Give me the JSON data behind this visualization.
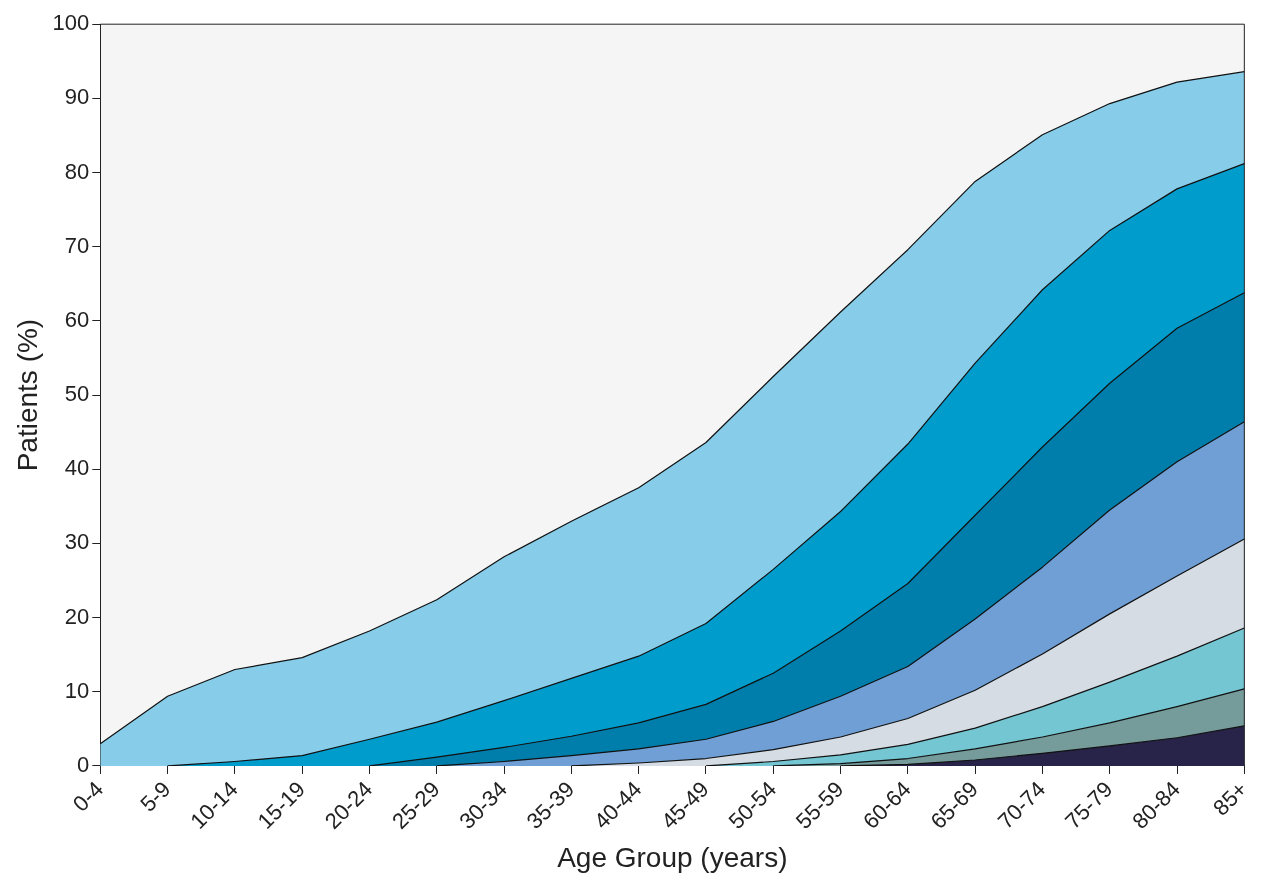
{
  "chart_data": {
    "type": "area",
    "xlabel": "Age Group (years)",
    "ylabel": "Patients (%)",
    "categories": [
      "0-4",
      "5-9",
      "10-14",
      "15-19",
      "20-24",
      "25-29",
      "30-34",
      "35-39",
      "40-44",
      "45-49",
      "50-54",
      "55-59",
      "60-64",
      "65-69",
      "70-74",
      "75-79",
      "80-84",
      "85+"
    ],
    "series": [
      {
        "color": "#87cde9",
        "values": [
          3.0,
          9.4,
          13.0,
          14.6,
          18.2,
          22.4,
          28.2,
          33.0,
          37.5,
          43.6,
          52.5,
          61.2,
          69.6,
          78.8,
          85.1,
          89.3,
          92.2,
          93.6
        ]
      },
      {
        "color": "#009dcc",
        "values": [
          null,
          0,
          0.6,
          1.4,
          3.6,
          5.9,
          8.8,
          11.8,
          14.8,
          19.2,
          26.5,
          34.3,
          43.4,
          54.3,
          64.2,
          72.2,
          77.8,
          81.2
        ]
      },
      {
        "color": "#007eab",
        "values": [
          null,
          null,
          null,
          null,
          0,
          1.2,
          2.5,
          4.0,
          5.8,
          8.3,
          12.5,
          18.2,
          24.6,
          33.8,
          43.0,
          51.6,
          59.0,
          63.8
        ]
      },
      {
        "color": "#6f9fd4",
        "values": [
          null,
          null,
          null,
          null,
          null,
          0,
          0.6,
          1.4,
          2.3,
          3.6,
          6.0,
          9.4,
          13.4,
          19.8,
          26.8,
          34.5,
          41.0,
          46.4
        ]
      },
      {
        "color": "#d5dce3",
        "values": [
          null,
          null,
          null,
          null,
          null,
          null,
          null,
          0,
          0.4,
          1.0,
          2.2,
          3.9,
          6.4,
          10.2,
          15.1,
          20.5,
          25.6,
          30.6
        ]
      },
      {
        "color": "#74c6d2",
        "values": [
          null,
          null,
          null,
          null,
          null,
          null,
          null,
          null,
          null,
          0,
          0.6,
          1.5,
          2.9,
          5.1,
          8.0,
          11.3,
          14.8,
          18.6
        ]
      },
      {
        "color": "#769b9b",
        "values": [
          null,
          null,
          null,
          null,
          null,
          null,
          null,
          null,
          null,
          null,
          0,
          0.3,
          1.0,
          2.3,
          3.9,
          5.8,
          8.0,
          10.4
        ]
      },
      {
        "color": "#282348",
        "values": [
          null,
          null,
          null,
          null,
          null,
          null,
          null,
          null,
          null,
          null,
          null,
          0,
          0.2,
          0.8,
          1.7,
          2.7,
          3.8,
          5.4
        ]
      }
    ],
    "ylim": [
      0,
      100
    ],
    "yticks": [
      0,
      10,
      20,
      30,
      40,
      50,
      60,
      70,
      80,
      90,
      100
    ],
    "grid": false,
    "legend": false,
    "marker": "none"
  }
}
